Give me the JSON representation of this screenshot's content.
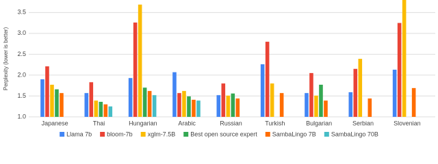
{
  "chart_data": {
    "type": "bar",
    "y_label": "Perplexity (lower is better)",
    "categories": [
      "Japanese",
      "Thai",
      "Hungarian",
      "Arabic",
      "Russian",
      "Turkish",
      "Bulgarian",
      "Serbian",
      "Slovenian"
    ],
    "series": [
      {
        "name": "Llama 7b",
        "color": "#4285f4",
        "values": [
          1.9,
          1.57,
          1.93,
          2.07,
          1.52,
          2.26,
          1.57,
          1.59,
          2.13
        ]
      },
      {
        "name": "bloom-7b",
        "color": "#ea4335",
        "values": [
          2.21,
          1.83,
          3.26,
          1.57,
          1.8,
          2.8,
          2.05,
          2.15,
          3.25
        ]
      },
      {
        "name": "xglm-7.5B",
        "color": "#fbbc04",
        "values": [
          1.77,
          1.39,
          3.69,
          1.62,
          1.51,
          1.8,
          1.51,
          2.39,
          3.9
        ]
      },
      {
        "name": "Best open source expert",
        "color": "#34a853",
        "values": [
          1.66,
          1.36,
          1.7,
          1.49,
          1.56,
          null,
          1.77,
          null,
          null
        ]
      },
      {
        "name": "SambaLingo 7B",
        "color": "#ff6d01",
        "values": [
          1.57,
          1.3,
          1.62,
          1.41,
          1.44,
          1.57,
          1.39,
          1.44,
          1.69
        ]
      },
      {
        "name": "SambaLingo 70B",
        "color": "#46bdc6",
        "values": [
          null,
          1.25,
          1.52,
          1.39,
          null,
          null,
          null,
          null,
          null
        ]
      }
    ],
    "ylim": [
      1.0,
      3.8
    ],
    "yticks": [
      {
        "value": 1.0,
        "label": "1.0"
      },
      {
        "value": 1.5,
        "label": "1.5"
      },
      {
        "value": 2.0,
        "label": "2.0"
      },
      {
        "value": 2.5,
        "label": "2.5"
      },
      {
        "value": 3.0,
        "label": "3.0"
      },
      {
        "value": 3.5,
        "label": "3.5"
      }
    ],
    "grid": true
  }
}
